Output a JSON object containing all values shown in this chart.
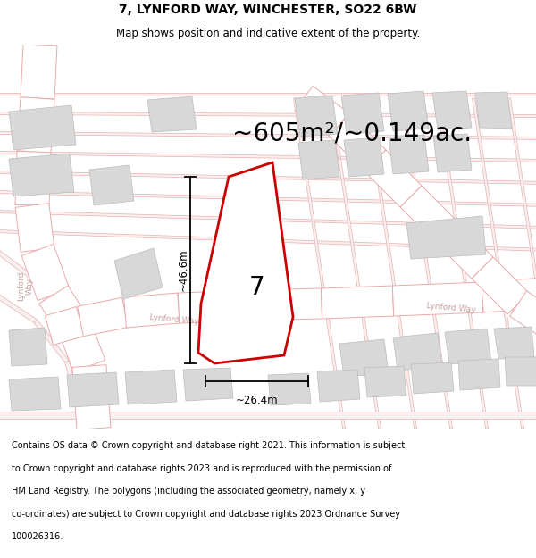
{
  "title_line1": "7, LYNFORD WAY, WINCHESTER, SO22 6BW",
  "title_line2": "Map shows position and indicative extent of the property.",
  "area_text": "~605m²/~0.149ac.",
  "dim_width": "~26.4m",
  "dim_height": "~46.6m",
  "plot_number": "7",
  "copyright_text_lines": [
    "Contains OS data © Crown copyright and database right 2021. This information is subject",
    "to Crown copyright and database rights 2023 and is reproduced with the permission of",
    "HM Land Registry. The polygons (including the associated geometry, namely x, y",
    "co-ordinates) are subject to Crown copyright and database rights 2023 Ordnance Survey",
    "100026316."
  ],
  "map_bg": "#f0f0f0",
  "road_fill": "#ffffff",
  "road_edge": "#e8aaaa",
  "road_lw": 0.7,
  "bldg_fill": "#d8d8d8",
  "bldg_edge": "#bbbbbb",
  "bldg_lw": 0.5,
  "prop_fill": "#ffffff",
  "prop_edge": "#cc0000",
  "prop_lw": 2.0,
  "dim_color": "#000000",
  "street_color": "#c8a0a0",
  "title_fs": 10,
  "subtitle_fs": 8.5,
  "area_fs": 20,
  "num_fs": 20,
  "dim_fs": 8.5,
  "street_fs": 6.5,
  "copy_fs": 7
}
